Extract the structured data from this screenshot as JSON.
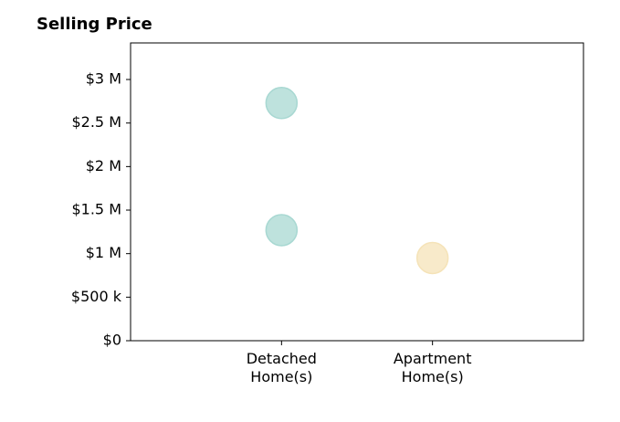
{
  "chart_data": {
    "type": "scatter",
    "title": "Selling Price",
    "categories": [
      "Detached\nHome(s)",
      "Apartment\nHome(s)"
    ],
    "points": [
      {
        "category": "Detached\nHome(s)",
        "value": 2730000,
        "color": "#a8d8d2"
      },
      {
        "category": "Detached\nHome(s)",
        "value": 1270000,
        "color": "#a8d8d2"
      },
      {
        "category": "Apartment\nHome(s)",
        "value": 950000,
        "color": "#f5e3b8"
      }
    ],
    "yticks": [
      {
        "value": 0,
        "label": "$0"
      },
      {
        "value": 500000,
        "label": "$500 k"
      },
      {
        "value": 1000000,
        "label": "$1 M"
      },
      {
        "value": 1500000,
        "label": "$1.5 M"
      },
      {
        "value": 2000000,
        "label": "$2 M"
      },
      {
        "value": 2500000,
        "label": "$2.5 M"
      },
      {
        "value": 3000000,
        "label": "$3 M"
      }
    ],
    "ylim": [
      0,
      3420000
    ],
    "xlim": [
      -1,
      2
    ],
    "grid": false
  }
}
